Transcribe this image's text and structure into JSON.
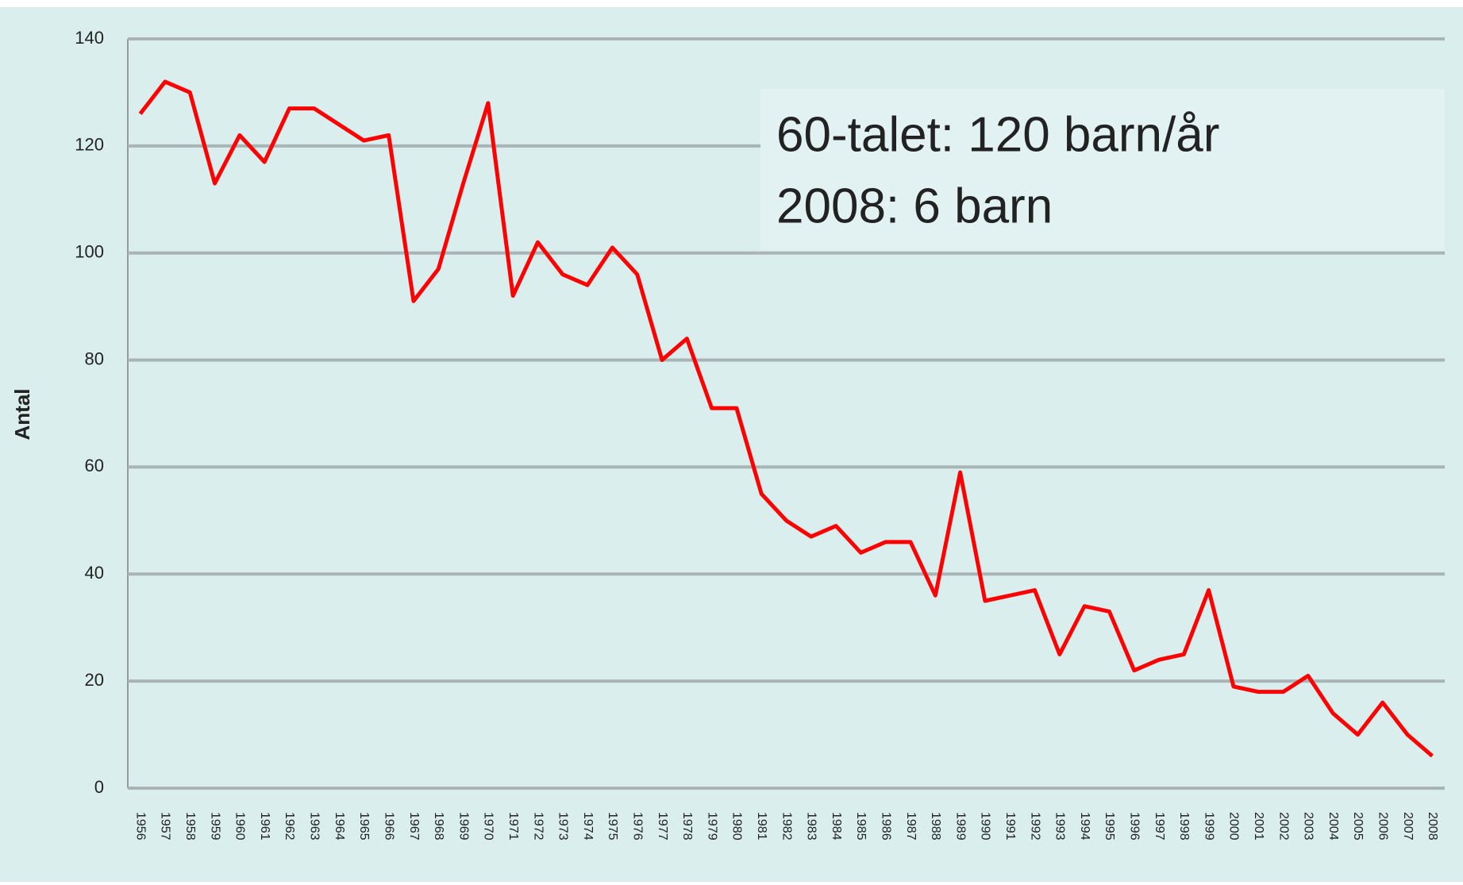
{
  "chart_data": {
    "type": "line",
    "y_label": "Antal",
    "annotation_lines": [
      "60-talet: 120 barn/år",
      "2008: 6 barn"
    ],
    "categories": [
      "1956",
      "1957",
      "1958",
      "1959",
      "1960",
      "1961",
      "1962",
      "1963",
      "1964",
      "1965",
      "1966",
      "1967",
      "1968",
      "1969",
      "1970",
      "1971",
      "1972",
      "1973",
      "1974",
      "1975",
      "1976",
      "1977",
      "1978",
      "1979",
      "1980",
      "1981",
      "1982",
      "1983",
      "1984",
      "1985",
      "1986",
      "1987",
      "1988",
      "1989",
      "1990",
      "1991",
      "1992",
      "1993",
      "1994",
      "1995",
      "1996",
      "1997",
      "1998",
      "1999",
      "2000",
      "2001",
      "2002",
      "2003",
      "2004",
      "2005",
      "2006",
      "2007",
      "2008"
    ],
    "values": [
      126,
      132,
      130,
      113,
      122,
      117,
      127,
      127,
      124,
      121,
      122,
      91,
      97,
      113,
      128,
      92,
      102,
      96,
      94,
      101,
      96,
      80,
      84,
      71,
      71,
      55,
      50,
      47,
      49,
      44,
      46,
      46,
      36,
      59,
      35,
      36,
      37,
      25,
      34,
      33,
      22,
      24,
      25,
      37,
      19,
      18,
      18,
      21,
      14,
      10,
      16,
      10,
      6
    ],
    "color": "#ff0000",
    "ylim": [
      0,
      140
    ],
    "yticks": [
      0,
      20,
      40,
      60,
      80,
      100,
      120,
      140
    ],
    "grid": true
  }
}
